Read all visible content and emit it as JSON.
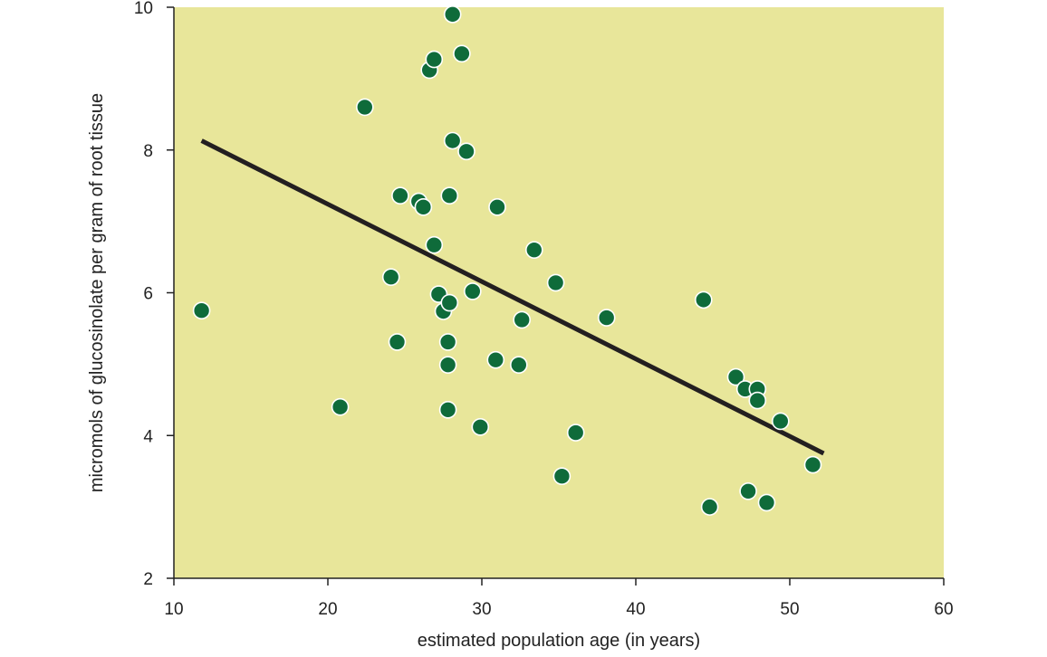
{
  "chart_data": {
    "type": "scatter",
    "title": "",
    "xlabel": "estimated population age (in years)",
    "ylabel": "micromols of glucosinolate per gram of root tissue",
    "xlim": [
      10,
      60
    ],
    "ylim": [
      2,
      10
    ],
    "x_ticks": [
      "10",
      "20",
      "30",
      "40",
      "50",
      "60"
    ],
    "y_ticks": [
      "2",
      "4",
      "6",
      "8",
      "10"
    ],
    "grid": false,
    "legend": "none",
    "colors": {
      "background": "#e8e69a",
      "point": "#0f6b3a",
      "point_stroke": "#ffffff",
      "line": "#231f20"
    },
    "points": [
      {
        "x": 11.8,
        "y": 5.75
      },
      {
        "x": 20.8,
        "y": 4.4
      },
      {
        "x": 22.4,
        "y": 8.6
      },
      {
        "x": 24.1,
        "y": 6.22
      },
      {
        "x": 24.5,
        "y": 5.31
      },
      {
        "x": 24.7,
        "y": 7.36
      },
      {
        "x": 25.9,
        "y": 7.28
      },
      {
        "x": 26.2,
        "y": 7.2
      },
      {
        "x": 26.6,
        "y": 9.12
      },
      {
        "x": 26.9,
        "y": 9.27
      },
      {
        "x": 26.9,
        "y": 6.67
      },
      {
        "x": 27.2,
        "y": 5.98
      },
      {
        "x": 27.5,
        "y": 5.74
      },
      {
        "x": 27.8,
        "y": 5.31
      },
      {
        "x": 27.8,
        "y": 4.99
      },
      {
        "x": 27.8,
        "y": 4.36
      },
      {
        "x": 27.9,
        "y": 5.86
      },
      {
        "x": 27.9,
        "y": 7.36
      },
      {
        "x": 28.1,
        "y": 8.13
      },
      {
        "x": 28.1,
        "y": 9.9
      },
      {
        "x": 28.7,
        "y": 9.35
      },
      {
        "x": 29.0,
        "y": 7.98
      },
      {
        "x": 29.4,
        "y": 6.02
      },
      {
        "x": 29.9,
        "y": 4.12
      },
      {
        "x": 30.9,
        "y": 5.06
      },
      {
        "x": 31.0,
        "y": 7.2
      },
      {
        "x": 32.4,
        "y": 4.99
      },
      {
        "x": 32.6,
        "y": 5.62
      },
      {
        "x": 33.4,
        "y": 6.6
      },
      {
        "x": 34.8,
        "y": 6.14
      },
      {
        "x": 35.2,
        "y": 3.43
      },
      {
        "x": 36.1,
        "y": 4.04
      },
      {
        "x": 38.1,
        "y": 5.65
      },
      {
        "x": 44.4,
        "y": 5.9
      },
      {
        "x": 44.8,
        "y": 3.0
      },
      {
        "x": 46.5,
        "y": 4.82
      },
      {
        "x": 47.1,
        "y": 4.65
      },
      {
        "x": 47.3,
        "y": 3.22
      },
      {
        "x": 47.9,
        "y": 4.65
      },
      {
        "x": 47.9,
        "y": 4.49
      },
      {
        "x": 48.5,
        "y": 3.06
      },
      {
        "x": 49.4,
        "y": 4.2
      },
      {
        "x": 51.5,
        "y": 3.59
      }
    ],
    "trendline": {
      "x": [
        11.8,
        52.2
      ],
      "y": [
        8.13,
        3.75
      ]
    }
  }
}
